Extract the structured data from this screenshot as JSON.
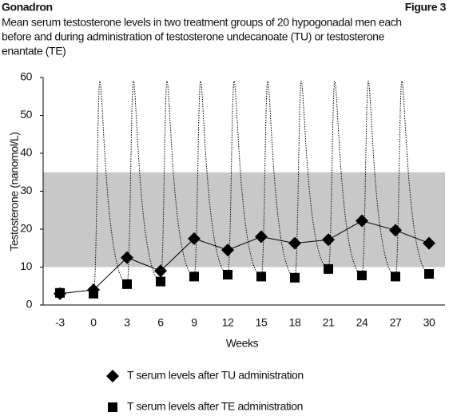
{
  "header": {
    "brand": "Gonadron",
    "figure": "Figure 3"
  },
  "chart_data": {
    "type": "line",
    "subtitle": [
      "Mean serum testosterone levels in two treatment groups of 20 hypogonadal men each",
      "before and during administration of testosterone undecanoate (TU) or testosterone",
      "enantate (TE)"
    ],
    "x_label": "Weeks",
    "y_label": "Testosterone (nanomol/L)",
    "categories": [
      "-3",
      "0",
      "3",
      "6",
      "9",
      "12",
      "15",
      "18",
      "21",
      "24",
      "27",
      "30"
    ],
    "ylim": [
      0,
      60
    ],
    "yticks": [
      0,
      10,
      20,
      30,
      40,
      50,
      60
    ],
    "band": {
      "range": [
        10,
        35
      ],
      "color": "#c8c8c8"
    },
    "series": [
      {
        "name": "T serum levels after TU administration",
        "color": "#000000",
        "marker": "diamond",
        "values": [
          3,
          4,
          12.5,
          9,
          17.5,
          14.5,
          18,
          16.3,
          17.2,
          22.2,
          19.7,
          16.3
        ]
      },
      {
        "name": "T serum levels after TE administration",
        "color": "#000000",
        "marker": "square",
        "values": [
          3.2,
          3,
          5.5,
          6.2,
          7.5,
          8,
          7.5,
          7.2,
          9.5,
          7.8,
          7.5,
          8.2
        ],
        "peaks": [
          null,
          59,
          59,
          59,
          59,
          59,
          59,
          59,
          59,
          59,
          59,
          null
        ]
      }
    ]
  }
}
